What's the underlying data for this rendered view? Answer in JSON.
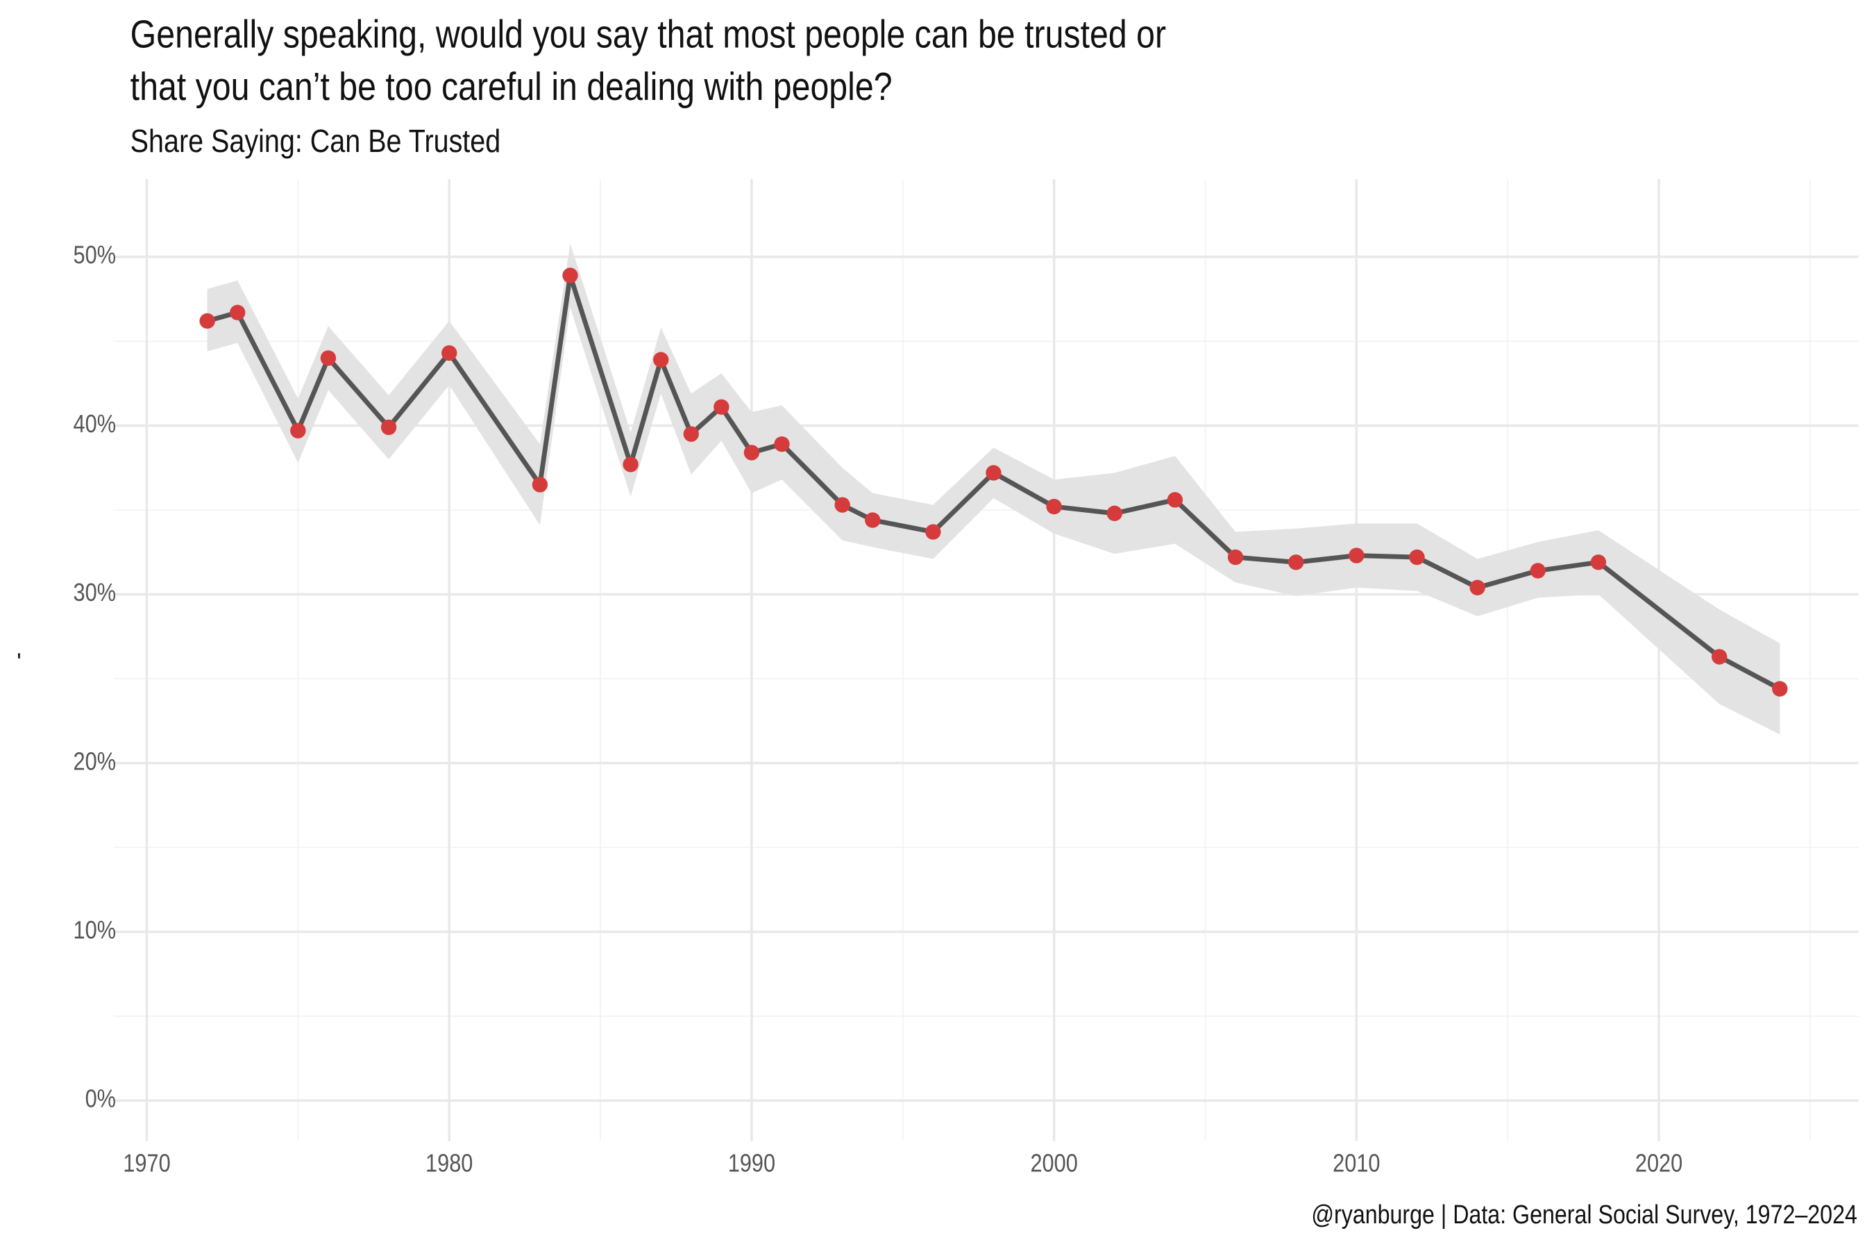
{
  "chart_data": {
    "type": "line",
    "title": [
      "Generally speaking, would you say that most people can be trusted or",
      "that you can’t be too careful in dealing with people?"
    ],
    "subtitle": "Share Saying: Can Be Trusted",
    "ylabel": "'",
    "caption": "@ryanburge | Data: General Social Survey, 1972–2024",
    "x": [
      1972,
      1973,
      1975,
      1976,
      1978,
      1980,
      1983,
      1984,
      1986,
      1987,
      1988,
      1989,
      1990,
      1991,
      1993,
      1994,
      1996,
      1998,
      2000,
      2002,
      2004,
      2006,
      2008,
      2010,
      2012,
      2014,
      2016,
      2018,
      2022,
      2024
    ],
    "series": [
      {
        "name": "Can Be Trusted",
        "color": "#555555",
        "point_color": "#d63b3b",
        "values": [
          46.2,
          46.7,
          39.7,
          44.0,
          39.9,
          44.3,
          36.5,
          48.9,
          37.7,
          43.9,
          39.5,
          41.1,
          38.4,
          38.9,
          35.3,
          34.4,
          33.7,
          37.2,
          35.2,
          34.8,
          35.6,
          32.2,
          31.9,
          32.3,
          32.2,
          30.4,
          31.4,
          31.9,
          26.3,
          24.4
        ]
      }
    ],
    "band": {
      "color": "#e3e3e3",
      "lower": [
        44.4,
        44.9,
        37.8,
        42.1,
        38.0,
        42.4,
        34.1,
        47.0,
        35.8,
        41.9,
        37.1,
        39.1,
        36.0,
        36.8,
        33.2,
        32.8,
        32.1,
        35.7,
        33.6,
        32.4,
        33.0,
        30.7,
        29.9,
        30.4,
        30.2,
        28.7,
        29.8,
        30.0,
        23.5,
        21.7
      ],
      "upper": [
        48.1,
        48.6,
        41.6,
        45.9,
        41.8,
        46.2,
        38.9,
        50.8,
        39.6,
        45.8,
        41.9,
        43.1,
        40.8,
        41.2,
        37.5,
        36.0,
        35.3,
        38.7,
        36.8,
        37.2,
        38.2,
        33.7,
        33.9,
        34.2,
        34.2,
        32.1,
        33.1,
        33.8,
        29.1,
        27.1
      ]
    },
    "xlim": [
      1968.9,
      2026.6
    ],
    "ylim": [
      -2.4,
      54.6
    ],
    "xticks": [
      1970,
      1980,
      1990,
      2000,
      2010,
      2020
    ],
    "minor_xticks": [
      1975,
      1985,
      1995,
      2005,
      2015,
      2025
    ],
    "yticks": [
      {
        "value": 0,
        "label": "0%"
      },
      {
        "value": 10,
        "label": "10%"
      },
      {
        "value": 20,
        "label": "20%"
      },
      {
        "value": 30,
        "label": "30%"
      },
      {
        "value": 40,
        "label": "40%"
      },
      {
        "value": 50,
        "label": "50%"
      }
    ],
    "minor_yticks": [
      5,
      15,
      25,
      35,
      45
    ],
    "grid": true
  }
}
